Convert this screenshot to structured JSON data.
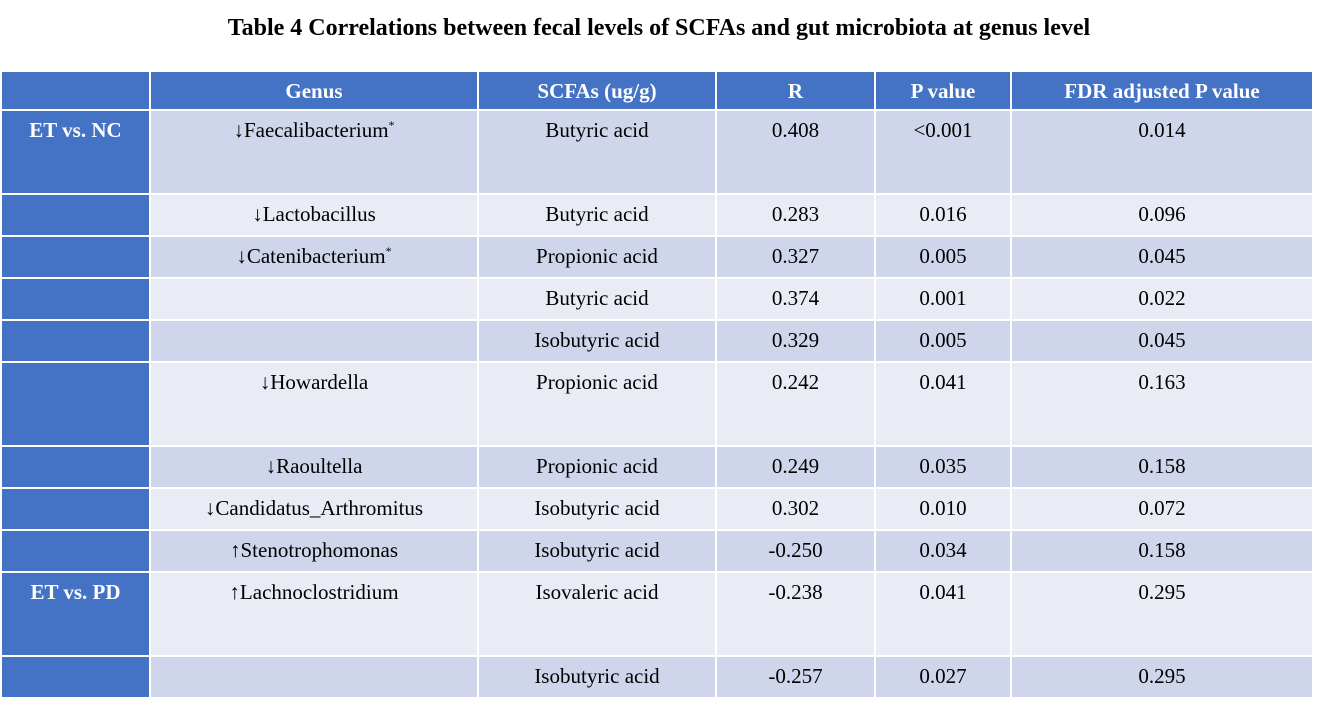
{
  "title": "Table 4 Correlations between fecal levels of SCFAs and gut microbiota at genus level",
  "colors": {
    "header_bg": "#4472c4",
    "row_dark": "#cfd5ea",
    "row_light": "#e9ebf5"
  },
  "table": {
    "headers": [
      "",
      "Genus",
      "SCFAs (ug/g)",
      "R",
      "P value",
      "FDR adjusted P value"
    ],
    "rows": [
      {
        "group": "ET vs. NC",
        "arrow": "↓",
        "genus": "Faecalibacterium",
        "mark": "*",
        "scfa": "Butyric acid",
        "r": "0.408",
        "p": "<0.001",
        "fdr": "0.014"
      },
      {
        "group": "",
        "arrow": "↓",
        "genus": "Lactobacillus",
        "mark": "",
        "scfa": "Butyric acid",
        "r": "0.283",
        "p": "0.016",
        "fdr": "0.096"
      },
      {
        "group": "",
        "arrow": "↓",
        "genus": "Catenibacterium",
        "mark": "*",
        "scfa": "Propionic acid",
        "r": "0.327",
        "p": "0.005",
        "fdr": "0.045"
      },
      {
        "group": "",
        "arrow": "",
        "genus": "",
        "mark": "",
        "scfa": "Butyric acid",
        "r": "0.374",
        "p": "0.001",
        "fdr": "0.022"
      },
      {
        "group": "",
        "arrow": "",
        "genus": "",
        "mark": "",
        "scfa": "Isobutyric acid",
        "r": "0.329",
        "p": "0.005",
        "fdr": "0.045"
      },
      {
        "group": "",
        "arrow": "↓",
        "genus": "Howardella",
        "mark": "",
        "scfa": "Propionic acid",
        "r": "0.242",
        "p": "0.041",
        "fdr": "0.163"
      },
      {
        "group": "",
        "arrow": "↓",
        "genus": "Raoultella",
        "mark": "",
        "scfa": "Propionic acid",
        "r": "0.249",
        "p": "0.035",
        "fdr": "0.158"
      },
      {
        "group": "",
        "arrow": "↓",
        "genus": "Candidatus_Arthromitus",
        "mark": "",
        "scfa": "Isobutyric acid",
        "r": "0.302",
        "p": "0.010",
        "fdr": "0.072"
      },
      {
        "group": "",
        "arrow": "↑",
        "genus": "Stenotrophomonas",
        "mark": "",
        "scfa": "Isobutyric acid",
        "r": "-0.250",
        "p": "0.034",
        "fdr": "0.158"
      },
      {
        "group": "ET vs. PD",
        "arrow": "↑",
        "genus": "Lachnoclostridium",
        "mark": "",
        "scfa": "Isovaleric acid",
        "r": "-0.238",
        "p": "0.041",
        "fdr": "0.295"
      },
      {
        "group": "",
        "arrow": "",
        "genus": "",
        "mark": "",
        "scfa": "Isobutyric acid",
        "r": "-0.257",
        "p": "0.027",
        "fdr": "0.295"
      }
    ]
  }
}
